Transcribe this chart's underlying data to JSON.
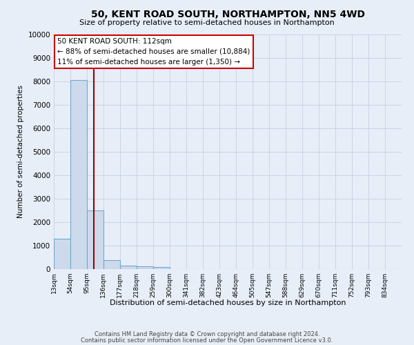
{
  "title": "50, KENT ROAD SOUTH, NORTHAMPTON, NN5 4WD",
  "subtitle": "Size of property relative to semi-detached houses in Northampton",
  "xlabel": "Distribution of semi-detached houses by size in Northampton",
  "ylabel": "Number of semi-detached properties",
  "footnote1": "Contains HM Land Registry data © Crown copyright and database right 2024.",
  "footnote2": "Contains public sector information licensed under the Open Government Licence v3.0.",
  "annotation_title": "50 KENT ROAD SOUTH: 112sqm",
  "annotation_line1": "← 88% of semi-detached houses are smaller (10,884)",
  "annotation_line2": "11% of semi-detached houses are larger (1,350) →",
  "property_size_sqm": 112,
  "bar_color": "#cddaeb",
  "bar_edge_color": "#6fa8d0",
  "vline_color": "#990000",
  "annotation_box_edge_color": "#cc0000",
  "annotation_box_face_color": "#ffffff",
  "grid_color": "#c8d4e4",
  "background_color": "#e8eef8",
  "categories": [
    "13sqm",
    "54sqm",
    "95sqm",
    "136sqm",
    "177sqm",
    "218sqm",
    "259sqm",
    "300sqm",
    "341sqm",
    "382sqm",
    "423sqm",
    "464sqm",
    "505sqm",
    "547sqm",
    "588sqm",
    "629sqm",
    "670sqm",
    "711sqm",
    "752sqm",
    "793sqm",
    "834sqm"
  ],
  "bin_edges": [
    13,
    54,
    95,
    136,
    177,
    218,
    259,
    300,
    341,
    382,
    423,
    464,
    505,
    547,
    588,
    629,
    670,
    711,
    752,
    793,
    834
  ],
  "bin_width": 41,
  "values": [
    1300,
    8050,
    2500,
    370,
    140,
    110,
    85,
    0,
    0,
    0,
    0,
    0,
    0,
    0,
    0,
    0,
    0,
    0,
    0,
    0,
    0
  ],
  "ylim": [
    0,
    10000
  ],
  "yticks": [
    0,
    1000,
    2000,
    3000,
    4000,
    5000,
    6000,
    7000,
    8000,
    9000,
    10000
  ],
  "figsize": [
    6.0,
    5.0
  ],
  "dpi": 100
}
